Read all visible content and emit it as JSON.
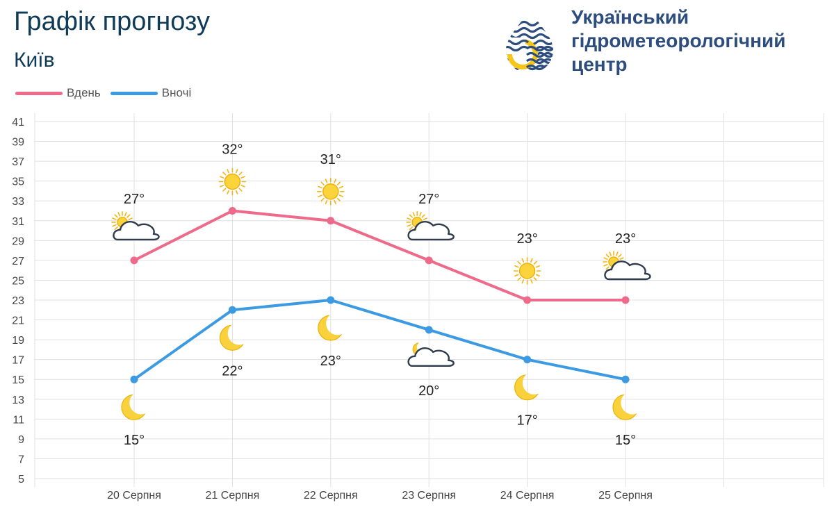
{
  "header": {
    "title": "Графік прогнозу",
    "city": "Київ"
  },
  "logo": {
    "line1": "Український",
    "line2": "гідрометеорологічний",
    "line3": "центр"
  },
  "colors": {
    "day": "#ee6a8a",
    "night": "#3b9ae1",
    "title": "#0f3b57",
    "logo_text": "#2c4d7e",
    "grid": "#e0e0e0"
  },
  "chart_data": {
    "type": "line",
    "categories": [
      "20 Серпня",
      "21 Серпня",
      "22 Серпня",
      "23 Серпня",
      "24 Серпня",
      "25 Серпня"
    ],
    "series": [
      {
        "name": "Вдень",
        "values": [
          27,
          32,
          31,
          27,
          23,
          23
        ],
        "icons": [
          "partly-cloudy",
          "sun",
          "sun",
          "partly-cloudy",
          "sun",
          "partly-cloudy"
        ]
      },
      {
        "name": "Вночі",
        "values": [
          15,
          22,
          23,
          20,
          17,
          15
        ],
        "icons": [
          "moon",
          "moon",
          "moon",
          "moon-cloudy",
          "moon",
          "moon"
        ]
      }
    ],
    "ylim": [
      5,
      41
    ],
    "yticks": [
      5,
      7,
      9,
      11,
      13,
      15,
      17,
      19,
      21,
      23,
      25,
      27,
      29,
      31,
      33,
      35,
      37,
      39,
      41
    ],
    "unit": "°",
    "legend_position": "top-left",
    "grid": true
  }
}
